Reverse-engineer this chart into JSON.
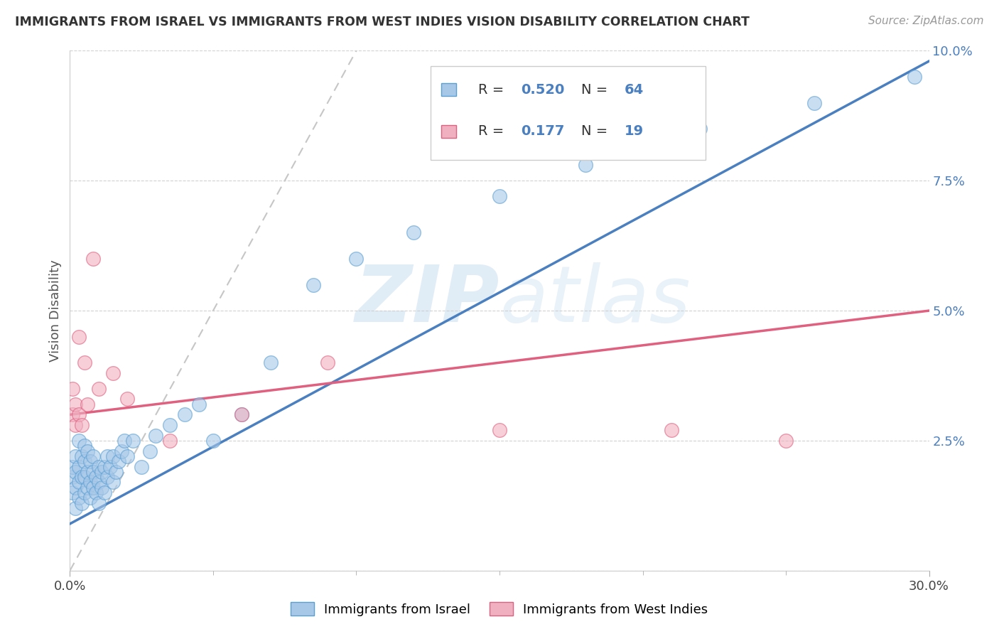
{
  "title": "IMMIGRANTS FROM ISRAEL VS IMMIGRANTS FROM WEST INDIES VISION DISABILITY CORRELATION CHART",
  "source": "Source: ZipAtlas.com",
  "ylabel": "Vision Disability",
  "xlim": [
    0.0,
    0.3
  ],
  "ylim": [
    0.0,
    0.1
  ],
  "yticks": [
    0.0,
    0.025,
    0.05,
    0.075,
    0.1
  ],
  "ytick_labels": [
    "",
    "2.5%",
    "5.0%",
    "7.5%",
    "10.0%"
  ],
  "xtick_labels": [
    "0.0%",
    "30.0%"
  ],
  "color_israel": "#a8c8e8",
  "color_israel_edge": "#5a9fd4",
  "color_west_indies": "#f0b0c0",
  "color_west_indies_edge": "#e06080",
  "color_line_israel": "#4a7fc0",
  "color_line_west_indies": "#e06080",
  "color_diag": "#b8b8b8",
  "label_israel": "Immigrants from Israel",
  "label_west_indies": "Immigrants from West Indies",
  "watermark_zip": "ZIP",
  "watermark_atlas": "atlas",
  "israel_x": [
    0.001,
    0.001,
    0.001,
    0.002,
    0.002,
    0.002,
    0.002,
    0.003,
    0.003,
    0.003,
    0.003,
    0.004,
    0.004,
    0.004,
    0.005,
    0.005,
    0.005,
    0.005,
    0.006,
    0.006,
    0.006,
    0.007,
    0.007,
    0.007,
    0.008,
    0.008,
    0.008,
    0.009,
    0.009,
    0.01,
    0.01,
    0.01,
    0.011,
    0.011,
    0.012,
    0.012,
    0.013,
    0.013,
    0.014,
    0.015,
    0.015,
    0.016,
    0.017,
    0.018,
    0.019,
    0.02,
    0.022,
    0.025,
    0.028,
    0.03,
    0.035,
    0.04,
    0.045,
    0.05,
    0.06,
    0.07,
    0.085,
    0.1,
    0.12,
    0.15,
    0.18,
    0.22,
    0.26,
    0.295
  ],
  "israel_y": [
    0.015,
    0.018,
    0.02,
    0.012,
    0.016,
    0.019,
    0.022,
    0.014,
    0.017,
    0.02,
    0.025,
    0.013,
    0.018,
    0.022,
    0.015,
    0.018,
    0.021,
    0.024,
    0.016,
    0.019,
    0.023,
    0.014,
    0.017,
    0.021,
    0.016,
    0.019,
    0.022,
    0.015,
    0.018,
    0.013,
    0.017,
    0.02,
    0.016,
    0.019,
    0.015,
    0.02,
    0.018,
    0.022,
    0.02,
    0.017,
    0.022,
    0.019,
    0.021,
    0.023,
    0.025,
    0.022,
    0.025,
    0.02,
    0.023,
    0.026,
    0.028,
    0.03,
    0.032,
    0.025,
    0.03,
    0.04,
    0.055,
    0.06,
    0.065,
    0.072,
    0.078,
    0.085,
    0.09,
    0.095
  ],
  "west_indies_x": [
    0.001,
    0.001,
    0.002,
    0.002,
    0.003,
    0.003,
    0.004,
    0.005,
    0.006,
    0.008,
    0.01,
    0.015,
    0.02,
    0.035,
    0.06,
    0.09,
    0.15,
    0.21,
    0.25
  ],
  "west_indies_y": [
    0.03,
    0.035,
    0.028,
    0.032,
    0.03,
    0.045,
    0.028,
    0.04,
    0.032,
    0.06,
    0.035,
    0.038,
    0.033,
    0.025,
    0.03,
    0.04,
    0.027,
    0.027,
    0.025
  ],
  "line_israel_x0": 0.0,
  "line_israel_y0": 0.009,
  "line_israel_x1": 0.3,
  "line_israel_y1": 0.098,
  "line_wi_x0": 0.0,
  "line_wi_y0": 0.03,
  "line_wi_x1": 0.3,
  "line_wi_y1": 0.05
}
